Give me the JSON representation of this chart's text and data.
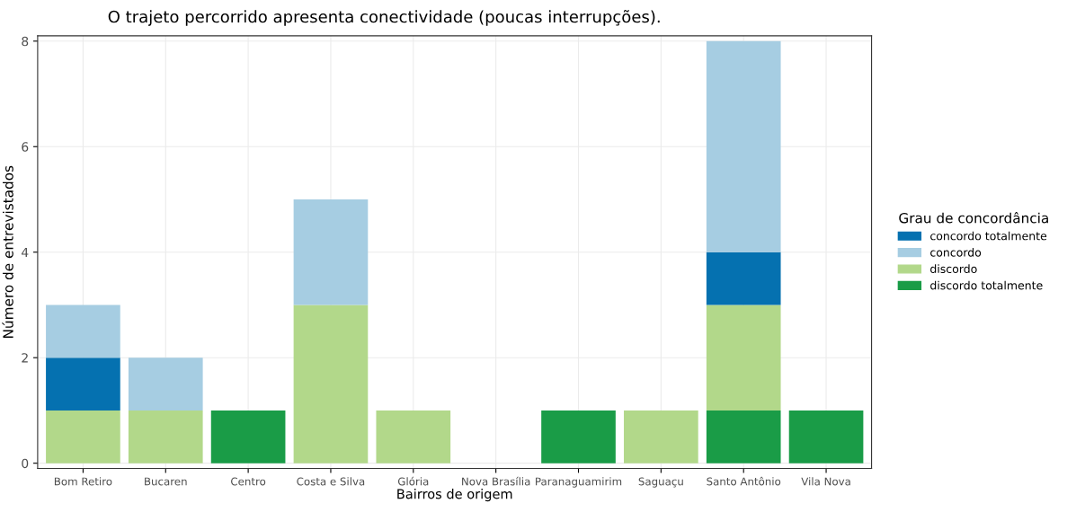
{
  "chart_data": {
    "type": "bar",
    "title": "O trajeto percorrido apresenta conectividade (poucas interrupções).",
    "xlabel": "Bairros de origem",
    "ylabel": "Número de entrevistados",
    "legend_title": "Grau de concordância",
    "categories": [
      "Bom Retiro",
      "Bucaren",
      "Centro",
      "Costa e Silva",
      "Glória",
      "Nova Brasília",
      "Paranaguamirim",
      "Saguaçu",
      "Santo Antônio",
      "Vila Nova"
    ],
    "stacked": true,
    "series": [
      {
        "name": "discordo totalmente",
        "color": "#1a9c47",
        "values": [
          0,
          0,
          1,
          0,
          0,
          0,
          1,
          0,
          1,
          1
        ]
      },
      {
        "name": "discordo",
        "color": "#b2d88a",
        "values": [
          1,
          1,
          0,
          3,
          1,
          0,
          0,
          1,
          2,
          0
        ]
      },
      {
        "name": "concordo totalmente",
        "color": "#0571b0",
        "values": [
          1,
          0,
          0,
          0,
          0,
          0,
          0,
          0,
          1,
          0
        ]
      },
      {
        "name": "concordo",
        "color": "#a6cde2",
        "values": [
          1,
          1,
          0,
          2,
          0,
          0,
          0,
          0,
          4,
          0
        ]
      }
    ],
    "ylim": [
      -0.1,
      8.1
    ],
    "yticks": [
      0,
      2,
      4,
      6,
      8
    ],
    "grid": true,
    "legend": "right"
  }
}
